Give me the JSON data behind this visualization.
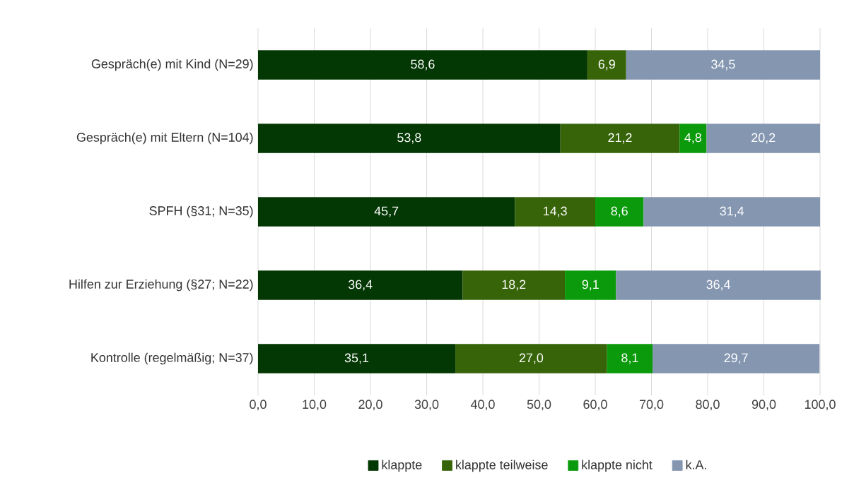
{
  "chart_data": {
    "type": "bar",
    "orientation": "horizontal",
    "stacked": true,
    "categories": [
      "Gespräch(e) mit Kind (N=29)",
      "Gespräch(e) mit Eltern (N=104)",
      "SPFH (§31; N=35)",
      "Hilfen zur Erziehung (§27; N=22)",
      "Kontrolle (regelmäßig; N=37)"
    ],
    "series": [
      {
        "name": "klappte",
        "color": "#033703",
        "values": [
          58.6,
          53.8,
          45.7,
          36.4,
          35.1
        ],
        "value_labels": [
          "58,6",
          "53,8",
          "45,7",
          "36,4",
          "35,1"
        ]
      },
      {
        "name": "klappte teilweise",
        "color": "#376409",
        "values": [
          6.9,
          21.2,
          14.3,
          18.2,
          27.0
        ],
        "value_labels": [
          "6,9",
          "21,2",
          "14,3",
          "18,2",
          "27,0"
        ]
      },
      {
        "name": "klappte nicht",
        "color": "#0b9a0b",
        "values": [
          null,
          4.8,
          8.6,
          9.1,
          8.1
        ],
        "value_labels": [
          null,
          "4,8",
          "8,6",
          "9,1",
          "8,1"
        ]
      },
      {
        "name": "k.A.",
        "color": "#8496b0",
        "values": [
          34.5,
          20.2,
          31.4,
          36.4,
          29.7
        ],
        "value_labels": [
          "34,5",
          "20,2",
          "31,4",
          "36,4",
          "29,7"
        ]
      }
    ],
    "xlim": [
      0,
      100
    ],
    "xticks": [
      {
        "value": 0,
        "label": "0,0"
      },
      {
        "value": 10,
        "label": "10,0"
      },
      {
        "value": 20,
        "label": "20,0"
      },
      {
        "value": 30,
        "label": "30,0"
      },
      {
        "value": 40,
        "label": "40,0"
      },
      {
        "value": 50,
        "label": "50,0"
      },
      {
        "value": 60,
        "label": "60,0"
      },
      {
        "value": 70,
        "label": "70,0"
      },
      {
        "value": 80,
        "label": "80,0"
      },
      {
        "value": 90,
        "label": "90,0"
      },
      {
        "value": 100,
        "label": "100,0"
      }
    ],
    "grid": "x",
    "legend": "bottom"
  }
}
